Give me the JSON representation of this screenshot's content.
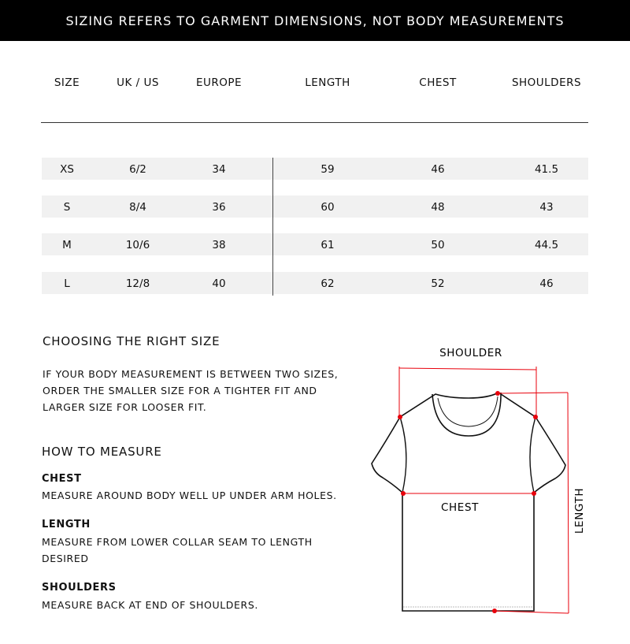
{
  "banner": "SIZING REFERS TO GARMENT DIMENSIONS, NOT BODY MEASUREMENTS",
  "table": {
    "headers": [
      "SIZE",
      "UK / US",
      "EUROPE",
      "LENGTH",
      "CHEST",
      "SHOULDERS"
    ],
    "rows": [
      [
        "XS",
        "6/2",
        "34",
        "59",
        "46",
        "41.5"
      ],
      [
        "S",
        "8/4",
        "36",
        "60",
        "48",
        "43"
      ],
      [
        "M",
        "10/6",
        "38",
        "61",
        "50",
        "44.5"
      ],
      [
        "L",
        "12/8",
        "40",
        "62",
        "52",
        "46"
      ]
    ]
  },
  "choosing": {
    "title": "CHOOSING THE RIGHT SIZE",
    "lines": [
      "IF YOUR BODY MEASUREMENT IS BETWEEN TWO SIZES,",
      "ORDER THE SMALLER SIZE FOR A TIGHTER FIT AND",
      "LARGER SIZE FOR LOOSER FIT."
    ]
  },
  "measure": {
    "title": "HOW TO MEASURE",
    "items": [
      {
        "label": "CHEST",
        "lines": [
          "MEASURE AROUND BODY WELL UP UNDER ARM HOLES."
        ]
      },
      {
        "label": "LENGTH",
        "lines": [
          "MEASURE FROM LOWER COLLAR SEAM TO LENGTH",
          "DESIRED"
        ]
      },
      {
        "label": "SHOULDERS",
        "lines": [
          "MEASURE BACK AT END OF SHOULDERS."
        ]
      }
    ]
  },
  "diagram": {
    "shoulder": "SHOULDER",
    "chest": "CHEST",
    "length": "LENGTH",
    "accent": "#e8000b"
  }
}
